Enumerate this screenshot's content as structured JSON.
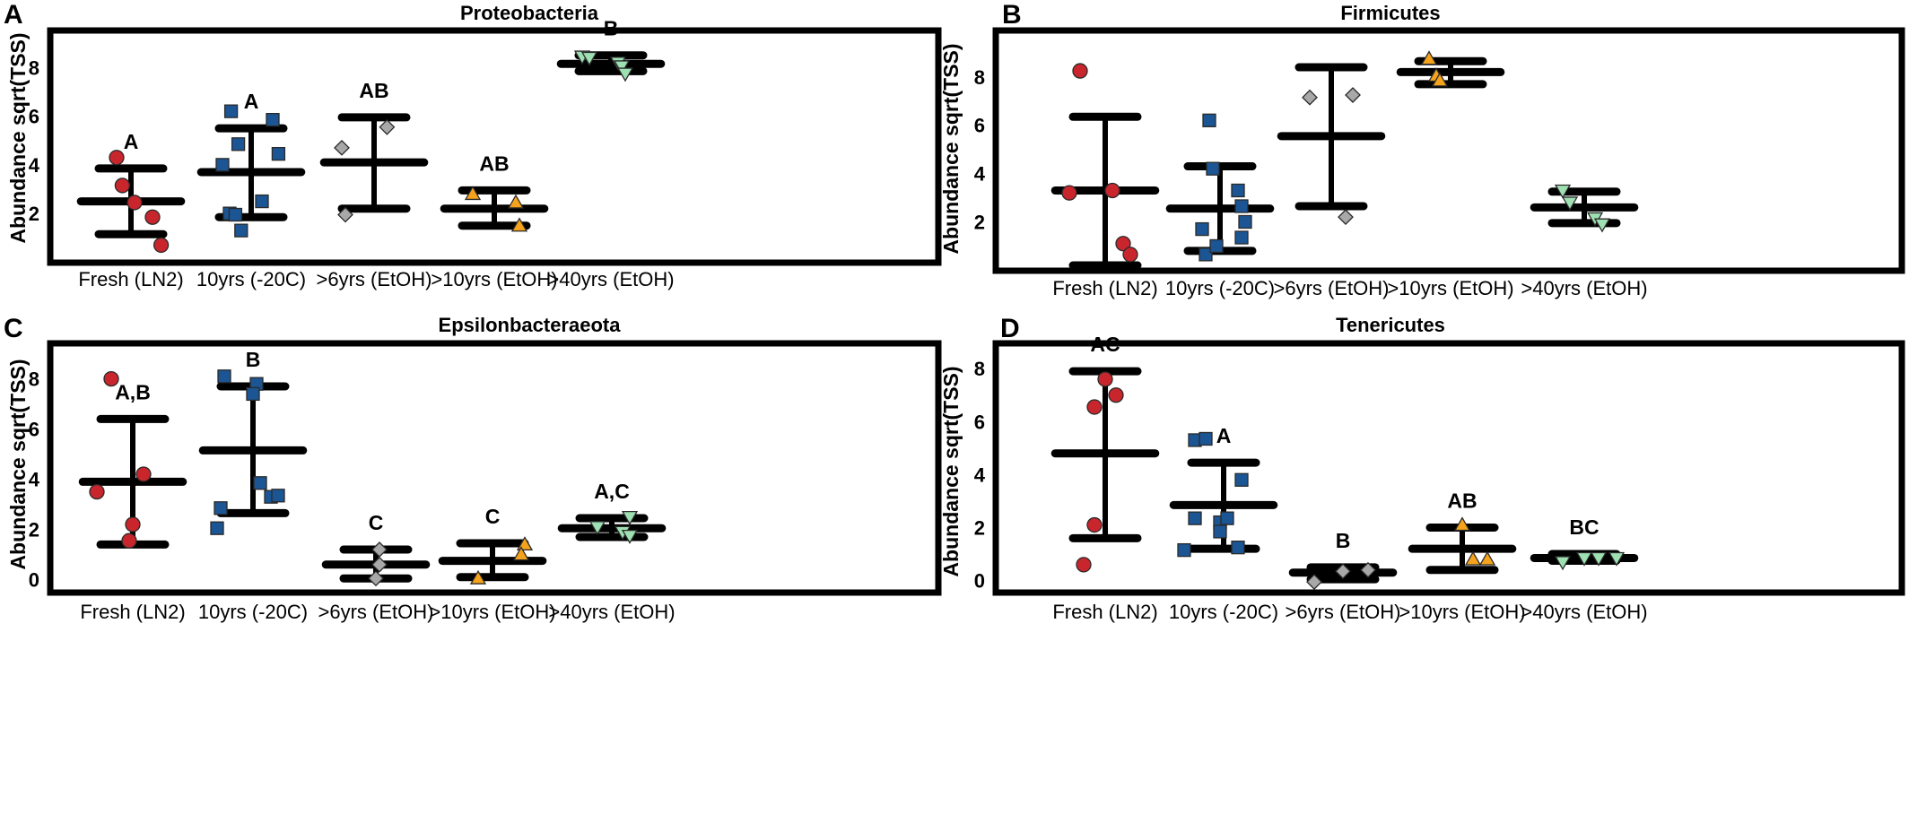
{
  "figure": {
    "colors": {
      "Fresh (LN2)": "#c8262c",
      "10yrs (-20C)": "#1b5594",
      ">6yrs (EtOH)": "#a8a8a8",
      ">10yrs (EtOH)": "#f5a31c",
      ">40yrs (EtOH)": "#9fe0b3",
      "errorbar": "#000000",
      "frame": "#000000"
    },
    "markers": {
      "Fresh (LN2)": "circle",
      "10yrs (-20C)": "square",
      ">6yrs (EtOH)": "diamond",
      ">10yrs (EtOH)": "triangle-up",
      ">40yrs (EtOH)": "triangle-down"
    }
  },
  "chart_data": [
    {
      "panel": "A",
      "type": "scatter",
      "title": "Proteobacteria",
      "xlabel": "",
      "ylabel": "Abundance sqrt(TSS)",
      "categories": [
        "Fresh (LN2)",
        "10yrs (-20C)",
        ">6yrs (EtOH)",
        ">10yrs (EtOH)",
        ">40yrs (EtOH)"
      ],
      "ylim": [
        0.2,
        9.3
      ],
      "yticks": [
        2,
        4,
        6,
        8
      ],
      "grid": false,
      "groups": [
        {
          "mean": 2.5,
          "upper": 3.85,
          "lower": 1.15,
          "letter": "A",
          "points": [
            [
              -0.2,
              4.3
            ],
            [
              -0.12,
              3.15
            ],
            [
              0.05,
              2.45
            ],
            [
              0.3,
              1.85
            ],
            [
              0.42,
              0.7
            ]
          ]
        },
        {
          "mean": 3.7,
          "upper": 5.5,
          "lower": 1.85,
          "letter": "A",
          "points": [
            [
              -0.4,
              4.0
            ],
            [
              -0.3,
              2.0
            ],
            [
              -0.28,
              6.2
            ],
            [
              -0.22,
              1.95
            ],
            [
              -0.18,
              4.85
            ],
            [
              -0.14,
              1.3
            ],
            [
              0.15,
              2.5
            ],
            [
              0.3,
              5.85
            ],
            [
              0.38,
              4.45
            ]
          ]
        },
        {
          "mean": 4.1,
          "upper": 5.95,
          "lower": 2.2,
          "letter": "AB",
          "points": [
            [
              -0.45,
              4.7
            ],
            [
              -0.4,
              1.95
            ],
            [
              0.18,
              5.55
            ]
          ]
        },
        {
          "mean": 2.2,
          "upper": 2.95,
          "lower": 1.5,
          "letter": "AB",
          "points": [
            [
              -0.3,
              2.8
            ],
            [
              0.3,
              2.45
            ],
            [
              0.35,
              1.5
            ]
          ]
        },
        {
          "mean": 8.15,
          "upper": 8.5,
          "lower": 7.85,
          "letter": "B",
          "points": [
            [
              -0.4,
              8.45
            ],
            [
              -0.3,
              8.4
            ],
            [
              0.1,
              8.2
            ],
            [
              0.15,
              8.05
            ],
            [
              0.2,
              7.75
            ]
          ]
        }
      ]
    },
    {
      "panel": "B",
      "type": "scatter",
      "title": "Firmicutes",
      "xlabel": "",
      "ylabel": "Abundance sqrt(TSS)",
      "categories": [
        "Fresh (LN2)",
        "10yrs (-20C)",
        ">6yrs (EtOH)",
        ">10yrs (EtOH)",
        ">40yrs (EtOH)"
      ],
      "ylim": [
        0.2,
        9.7
      ],
      "yticks": [
        2,
        4,
        6,
        8
      ],
      "grid": false,
      "groups": [
        {
          "mean": 3.3,
          "upper": 6.35,
          "lower": 0.2,
          "letter": "",
          "points": [
            [
              -0.35,
              8.25
            ],
            [
              -0.5,
              3.2
            ],
            [
              0.1,
              3.3
            ],
            [
              0.25,
              1.1
            ],
            [
              0.35,
              0.65
            ]
          ]
        },
        {
          "mean": 2.55,
          "upper": 4.3,
          "lower": 0.8,
          "letter": "",
          "points": [
            [
              -0.15,
              6.2
            ],
            [
              -0.1,
              4.2
            ],
            [
              -0.25,
              1.7
            ],
            [
              -0.2,
              0.65
            ],
            [
              0.25,
              3.3
            ],
            [
              0.3,
              2.65
            ],
            [
              0.35,
              2.0
            ],
            [
              0.3,
              1.35
            ],
            [
              -0.05,
              1.0
            ]
          ]
        },
        {
          "mean": 5.55,
          "upper": 8.4,
          "lower": 2.65,
          "letter": "",
          "points": [
            [
              -0.3,
              7.15
            ],
            [
              0.3,
              7.25
            ],
            [
              0.2,
              2.2
            ]
          ]
        },
        {
          "mean": 8.2,
          "upper": 8.65,
          "lower": 7.7,
          "letter": "",
          "points": [
            [
              -0.3,
              8.75
            ],
            [
              -0.2,
              8.05
            ],
            [
              -0.15,
              7.85
            ]
          ]
        },
        {
          "mean": 2.6,
          "upper": 3.25,
          "lower": 1.95,
          "letter": "",
          "points": [
            [
              -0.3,
              3.3
            ],
            [
              -0.2,
              2.8
            ],
            [
              0.15,
              2.15
            ],
            [
              0.25,
              1.9
            ]
          ]
        }
      ]
    },
    {
      "panel": "C",
      "type": "scatter",
      "title": "Epsilonbacteraeota",
      "xlabel": "",
      "ylabel": "Abundance sqrt(TSS)",
      "categories": [
        "Fresh (LN2)",
        "10yrs (-20C)",
        ">6yrs (EtOH)",
        ">10yrs (EtOH)",
        ">40yrs (EtOH)"
      ],
      "ylim": [
        -0.3,
        9.2
      ],
      "yticks": [
        0,
        2,
        4,
        6,
        8
      ],
      "grid": false,
      "groups": [
        {
          "mean": 3.9,
          "upper": 6.4,
          "lower": 1.4,
          "letter": "A,B",
          "points": [
            [
              -0.3,
              8.0
            ],
            [
              -0.5,
              3.5
            ],
            [
              0.15,
              4.2
            ],
            [
              0.0,
              2.2
            ],
            [
              -0.05,
              1.55
            ]
          ]
        },
        {
          "mean": 5.15,
          "upper": 7.7,
          "lower": 2.65,
          "letter": "B",
          "points": [
            [
              -0.4,
              8.1
            ],
            [
              -0.45,
              2.85
            ],
            [
              -0.5,
              2.05
            ],
            [
              0.05,
              7.8
            ],
            [
              0.0,
              7.4
            ],
            [
              0.1,
              3.85
            ],
            [
              0.25,
              3.3
            ],
            [
              0.35,
              3.35
            ]
          ]
        },
        {
          "mean": 0.6,
          "upper": 1.2,
          "lower": 0.05,
          "letter": "C",
          "points": [
            [
              0.05,
              1.2
            ],
            [
              0.05,
              0.6
            ],
            [
              0.0,
              0.05
            ]
          ]
        },
        {
          "mean": 0.75,
          "upper": 1.45,
          "lower": 0.1,
          "letter": "C",
          "points": [
            [
              0.45,
              1.4
            ],
            [
              0.4,
              1.0
            ],
            [
              -0.2,
              0.05
            ]
          ]
        },
        {
          "mean": 2.05,
          "upper": 2.45,
          "lower": 1.7,
          "letter": "A,C",
          "points": [
            [
              -0.2,
              2.1
            ],
            [
              0.25,
              2.5
            ],
            [
              0.15,
              1.9
            ],
            [
              0.25,
              1.75
            ]
          ]
        }
      ]
    },
    {
      "panel": "D",
      "type": "scatter",
      "title": "Tenericutes",
      "xlabel": "",
      "ylabel": "Abundance sqrt(TSS)",
      "categories": [
        "Fresh (LN2)",
        "10yrs (-20C)",
        ">6yrs (EtOH)",
        ">10yrs (EtOH)",
        ">40yrs (EtOH)"
      ],
      "ylim": [
        -0.25,
        8.75
      ],
      "yticks": [
        0,
        2,
        4,
        6,
        8
      ],
      "grid": false,
      "groups": [
        {
          "mean": 4.8,
          "upper": 7.9,
          "lower": 1.6,
          "letter": "AC",
          "points": [
            [
              0.0,
              7.6
            ],
            [
              0.15,
              7.0
            ],
            [
              -0.15,
              6.55
            ],
            [
              -0.15,
              2.1
            ],
            [
              -0.3,
              0.6
            ]
          ]
        },
        {
          "mean": 2.85,
          "upper": 4.45,
          "lower": 1.2,
          "letter": "A",
          "points": [
            [
              -0.4,
              5.3
            ],
            [
              -0.25,
              5.35
            ],
            [
              -0.4,
              2.35
            ],
            [
              -0.05,
              2.2
            ],
            [
              0.05,
              2.35
            ],
            [
              -0.05,
              1.85
            ],
            [
              0.25,
              3.8
            ],
            [
              0.2,
              1.25
            ],
            [
              -0.55,
              1.15
            ]
          ]
        },
        {
          "mean": 0.3,
          "upper": 0.5,
          "lower": 0.05,
          "letter": "B",
          "points": [
            [
              -0.4,
              -0.05
            ],
            [
              0.0,
              0.35
            ],
            [
              0.35,
              0.4
            ]
          ]
        },
        {
          "mean": 1.2,
          "upper": 2.0,
          "lower": 0.4,
          "letter": "AB",
          "points": [
            [
              0.0,
              2.1
            ],
            [
              0.15,
              0.8
            ],
            [
              0.35,
              0.8
            ]
          ]
        },
        {
          "mean": 0.85,
          "upper": 1.0,
          "lower": 0.75,
          "letter": "BC",
          "points": [
            [
              -0.3,
              0.7
            ],
            [
              0.0,
              0.85
            ],
            [
              0.2,
              0.85
            ],
            [
              0.45,
              0.85
            ]
          ]
        }
      ]
    }
  ]
}
